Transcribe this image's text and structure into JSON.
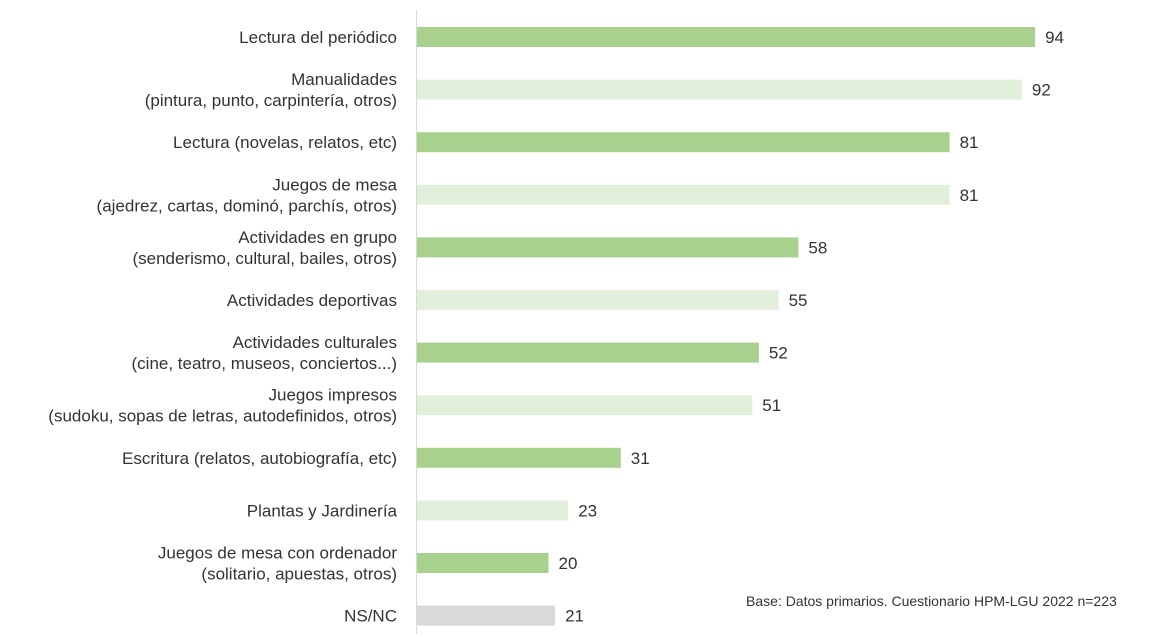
{
  "chart_data": {
    "type": "bar",
    "orientation": "horizontal",
    "title": "",
    "xlabel": "",
    "ylabel": "",
    "xlim": [
      0,
      100
    ],
    "grid": false,
    "legend": "none",
    "categories": [
      [
        "Lectura del periódico"
      ],
      [
        "Manualidades",
        "(pintura, punto, carpintería, otros)"
      ],
      [
        "Lectura (novelas, relatos, etc)"
      ],
      [
        "Juegos de mesa",
        "(ajedrez, cartas, dominó, parchís, otros)"
      ],
      [
        "Actividades en grupo",
        "(senderismo, cultural, bailes, otros)"
      ],
      [
        "Actividades deportivas"
      ],
      [
        "Actividades culturales",
        "(cine, teatro, museos, conciertos...)"
      ],
      [
        "Juegos impresos",
        "(sudoku, sopas de letras, autodefinidos, otros)"
      ],
      [
        "Escritura (relatos, autobiografía, etc)"
      ],
      [
        "Plantas y Jardinería"
      ],
      [
        "Juegos de mesa con ordenador",
        "(solitario, apuestas, otros)"
      ],
      [
        "NS/NC"
      ]
    ],
    "values": [
      94,
      92,
      81,
      81,
      58,
      55,
      52,
      51,
      31,
      23,
      20,
      21
    ],
    "value_labels": [
      "94",
      "92",
      "81",
      "81",
      "58",
      "55",
      "52",
      "51",
      "31",
      "23",
      "20",
      "21"
    ],
    "bar_colors": [
      "#a9d18e",
      "#e2efda",
      "#a9d18e",
      "#e2efda",
      "#a9d18e",
      "#e2efda",
      "#a9d18e",
      "#e2efda",
      "#a9d18e",
      "#e2efda",
      "#a9d18e",
      "#d9d9d9"
    ],
    "axis_color": "#d9d9d9",
    "source_note": "Base: Datos primarios. Cuestionario HPM-LGU 2022 n=223"
  }
}
